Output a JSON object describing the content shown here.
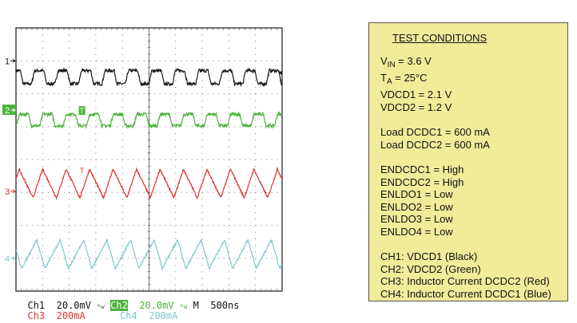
{
  "chart_data": {
    "type": "line",
    "subtype": "oscilloscope-capture",
    "x_unit": "ns",
    "time_per_div_ns": 500,
    "divisions": {
      "horizontal": 10,
      "vertical": 8
    },
    "grid": true,
    "xlim": [
      0,
      5000
    ],
    "series": [
      {
        "channel": "Ch1",
        "color": "#1a1a1a",
        "scale": "20.0mV",
        "unit_per_div": 20,
        "marker": "1",
        "marker_div": 3.0,
        "shape": "square",
        "period_ns": 441,
        "phase_ns": 435,
        "mean": -10,
        "peak_to_peak": 8,
        "noise": 1.0
      },
      {
        "channel": "Ch2",
        "color": "#4bb33b",
        "scale": "20.0mV",
        "unit_per_div": 20,
        "marker": "2",
        "marker_div": 1.5,
        "shape": "square",
        "period_ns": 441,
        "phase_ns": 150,
        "mean": -6,
        "peak_to_peak": 7,
        "noise": 1.0
      },
      {
        "channel": "Ch3",
        "color": "#e03030",
        "scale": "200mA",
        "unit_per_div": 200,
        "marker": "3",
        "marker_div": -0.97,
        "shape": "triangle",
        "fall_fraction": 0.59,
        "period_ns": 441,
        "phase_ns": 60,
        "mean": 48,
        "peak_to_peak": 175,
        "noise": 6
      },
      {
        "channel": "Ch4",
        "color": "#7ec8cc",
        "scale": "200mA",
        "unit_per_div": 200,
        "marker": "4",
        "marker_div": -3.0,
        "shape": "triangle",
        "fall_fraction": 0.35,
        "period_ns": 441,
        "phase_ns": 390,
        "mean": 24,
        "peak_to_peak": 175,
        "noise": 6
      }
    ],
    "readout": {
      "ch1": "Ch1",
      "ch1_scale": "20.0mV",
      "ch2": "Ch2",
      "ch2_scale": "20.0mV",
      "ch3": "Ch3",
      "ch3_scale": "200mA",
      "ch4": "Ch4",
      "ch4_scale": "200mA",
      "timebase_label": "M",
      "timebase": "500ns",
      "trigger_marker": "T"
    }
  },
  "colors": {
    "panel_bg": "#f2eb9a",
    "grid": "#555555"
  },
  "test_conditions": {
    "title": "TEST CONDITIONS",
    "vin_sym": "V",
    "vin_sub": "IN",
    "vin_val": " = 3.6 V",
    "ta_sym": "T",
    "ta_sub": "A",
    "ta_val": " = 25°C",
    "lines": [
      "VDCD1 = 2.1 V",
      "VDCD2 = 1.2 V",
      "Load DCDC1 = 600 mA",
      "Load DCDC2 = 600 mA",
      "ENDCDC1 = High",
      "ENDCDC2 = High",
      "ENLDO1 = Low",
      "ENLDO2 = Low",
      "ENLDO3 = Low",
      "ENLDO4 = Low",
      "CH1: VDCD1 (Black)",
      "CH2: VDCD2 (Green)",
      "CH3: Inductor Current DCDC2 (Red)",
      "CH4: Inductor Current DCDC1 (Blue)"
    ]
  }
}
